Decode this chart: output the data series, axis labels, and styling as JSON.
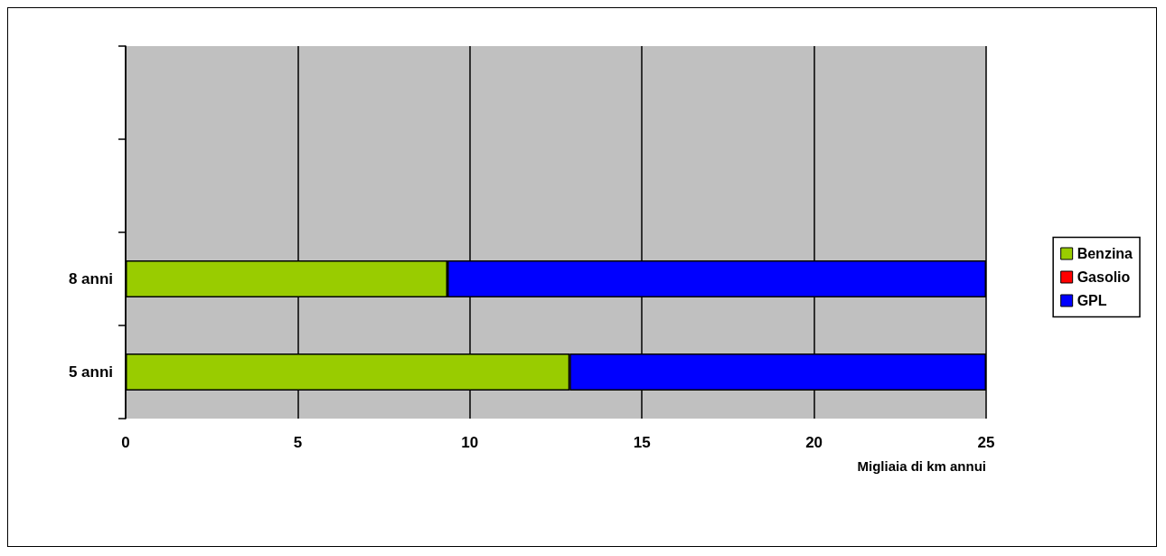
{
  "chart_data": {
    "type": "bar",
    "orientation": "horizontal",
    "stacked": true,
    "xlabel": "Migliaia di km annui",
    "categories": [
      null,
      null,
      "8 anni",
      "5 anni"
    ],
    "series": [
      {
        "name": "Benzina",
        "color": "#99cc00",
        "values": [
          null,
          null,
          9.35,
          12.9
        ]
      },
      {
        "name": "Gasolio",
        "color": "#ff0000",
        "values": [
          null,
          null,
          null,
          null
        ]
      },
      {
        "name": "GPL",
        "color": "#0000ff",
        "values": [
          null,
          null,
          15.65,
          12.1
        ]
      }
    ],
    "xlim": [
      0,
      25
    ],
    "xticks": [
      0,
      5,
      10,
      15,
      20,
      25
    ],
    "grid": "x",
    "legend": "right"
  }
}
